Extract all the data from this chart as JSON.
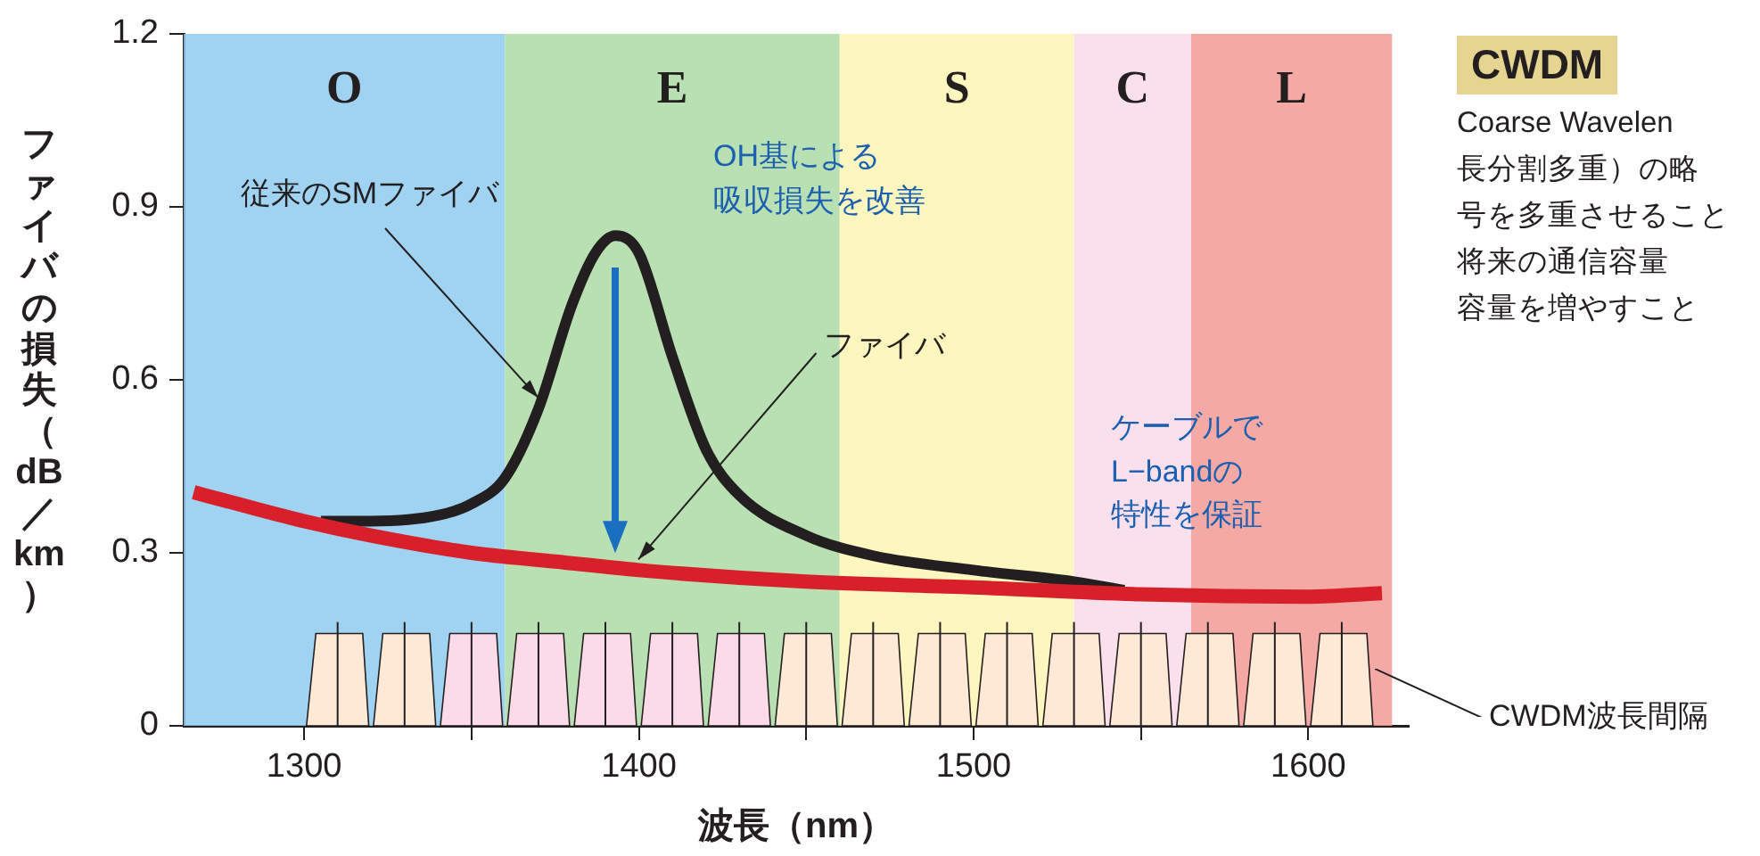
{
  "chart_data": {
    "type": "line",
    "xlabel": "波長（nm）",
    "ylabel": "ファイバの損失（dB／km）",
    "xlim": [
      1264,
      1630
    ],
    "xticks": [
      1300,
      {
        "value": 1350,
        "label": null
      },
      1400,
      {
        "value": 1450,
        "label": null
      },
      1500,
      {
        "value": 1550,
        "label": null
      },
      1600
    ],
    "ylim": [
      0,
      1.2
    ],
    "yticks": [
      0,
      0.3,
      0.6,
      0.9,
      1.2
    ],
    "grid": false,
    "legend": false,
    "marker": "none",
    "line_style": "solid",
    "series": [
      {
        "name": "従来のSMファイバ",
        "color": "#231f20",
        "x": [
          1305,
          1320,
          1340,
          1350,
          1360,
          1370,
          1380,
          1387,
          1393,
          1400,
          1410,
          1420,
          1430,
          1450,
          1470,
          1500,
          1530,
          1545
        ],
        "values": [
          0.355,
          0.355,
          0.365,
          0.385,
          0.43,
          0.55,
          0.73,
          0.82,
          0.85,
          0.82,
          0.64,
          0.48,
          0.4,
          0.33,
          0.295,
          0.27,
          0.25,
          0.235
        ]
      },
      {
        "name": "ファイバ",
        "color": "#d7202a",
        "x": [
          1267,
          1280,
          1300,
          1320,
          1350,
          1375,
          1400,
          1450,
          1500,
          1550,
          1600,
          1622
        ],
        "values": [
          0.405,
          0.385,
          0.355,
          0.33,
          0.3,
          0.285,
          0.27,
          0.25,
          0.24,
          0.228,
          0.224,
          0.23
        ]
      }
    ],
    "bands": [
      {
        "axis": "x",
        "from": 1264,
        "to": 1360,
        "label": "O",
        "color": "#8fcbee"
      },
      {
        "axis": "x",
        "from": 1360,
        "to": 1460,
        "label": "E",
        "color": "#acdba4"
      },
      {
        "axis": "x",
        "from": 1460,
        "to": 1530,
        "label": "S",
        "color": "#fdf5b4"
      },
      {
        "axis": "x",
        "from": 1530,
        "to": 1565,
        "label": "C",
        "color": "#f9dbea"
      },
      {
        "axis": "x",
        "from": 1565,
        "to": 1625,
        "label": "L",
        "color": "#f29a95"
      }
    ],
    "annotations": [
      "OH基による吸収損失を改善",
      "ケーブルでL−bandの特性を保証",
      "CWDM波長間隔",
      "CWDM",
      "Coarse Wavelen",
      "長分割多重）の略",
      "号を多重させること",
      "将来の通信容量",
      "容量を増やすこと"
    ]
  }
}
